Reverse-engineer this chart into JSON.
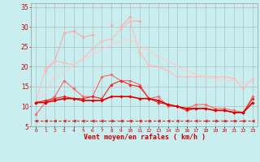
{
  "background_color": "#c8eef0",
  "grid_color": "#b0b0b0",
  "xlabel": "Vent moyen/en rafales ( km/h )",
  "x_labels": [
    "0",
    "1",
    "2",
    "3",
    "4",
    "5",
    "6",
    "7",
    "8",
    "9",
    "10",
    "11",
    "12",
    "13",
    "14",
    "15",
    "16",
    "17",
    "18",
    "19",
    "20",
    "21",
    "22",
    "23"
  ],
  "ylim": [
    5,
    36
  ],
  "xlim": [
    -0.5,
    23.5
  ],
  "yticks": [
    5,
    10,
    15,
    20,
    25,
    30,
    35
  ],
  "series": [
    {
      "label": "line_top_spiky",
      "color": "#ffaaaa",
      "linewidth": 0.8,
      "marker": "D",
      "markersize": 1.8,
      "y": [
        null,
        null,
        null,
        null,
        null,
        null,
        null,
        null,
        null,
        30.0,
        32.5,
        null,
        null,
        null,
        null,
        null,
        null,
        null,
        null,
        null,
        null,
        null,
        null,
        null
      ]
    },
    {
      "label": "line_pink_upper",
      "color": "#ffaaaa",
      "linewidth": 0.8,
      "marker": "D",
      "markersize": 1.8,
      "y": [
        null,
        19.0,
        21.5,
        28.5,
        29.0,
        27.5,
        28.0,
        null,
        30.5,
        null,
        31.5,
        31.5,
        null,
        null,
        null,
        null,
        null,
        null,
        null,
        null,
        null,
        null,
        null,
        null
      ]
    },
    {
      "label": "line_pink_mid_marker",
      "color": "#ffbbbb",
      "linewidth": 0.8,
      "marker": "D",
      "markersize": 1.8,
      "y": [
        11.0,
        19.5,
        21.5,
        21.0,
        20.5,
        22.0,
        24.5,
        26.5,
        27.0,
        29.5,
        31.5,
        23.5,
        20.5,
        20.0,
        19.0,
        17.5,
        17.5,
        17.5,
        17.5,
        17.5,
        17.5,
        17.0,
        14.5,
        17.0
      ]
    },
    {
      "label": "line_pink_smooth",
      "color": "#ffcccc",
      "linewidth": 0.8,
      "marker": null,
      "markersize": 0,
      "y": [
        11.0,
        13.5,
        17.5,
        18.5,
        20.5,
        22.0,
        23.0,
        24.5,
        25.5,
        26.5,
        27.0,
        25.5,
        24.0,
        22.5,
        21.5,
        20.0,
        19.0,
        18.0,
        17.5,
        17.0,
        16.5,
        16.5,
        16.0,
        16.5
      ]
    },
    {
      "label": "line_red_medium",
      "color": "#ff6666",
      "linewidth": 0.8,
      "marker": "D",
      "markersize": 1.8,
      "y": [
        8.0,
        11.0,
        12.5,
        16.5,
        14.5,
        12.5,
        12.5,
        17.5,
        18.0,
        16.5,
        16.5,
        15.5,
        12.0,
        12.5,
        10.0,
        10.0,
        9.5,
        10.5,
        10.5,
        9.5,
        9.5,
        9.0,
        8.5,
        12.5
      ]
    },
    {
      "label": "line_red_lower1",
      "color": "#ee2222",
      "linewidth": 0.8,
      "marker": "D",
      "markersize": 1.8,
      "y": [
        11.0,
        11.5,
        12.0,
        12.5,
        12.0,
        12.0,
        12.5,
        12.0,
        15.5,
        16.5,
        15.5,
        15.0,
        12.0,
        11.0,
        10.5,
        10.0,
        9.0,
        9.5,
        9.5,
        9.0,
        9.0,
        8.5,
        8.5,
        12.0
      ]
    },
    {
      "label": "line_red_lower2",
      "color": "#dd0000",
      "linewidth": 1.2,
      "marker": "D",
      "markersize": 1.8,
      "y": [
        11.0,
        11.0,
        11.5,
        12.0,
        12.0,
        11.5,
        11.5,
        11.5,
        12.5,
        12.5,
        12.5,
        12.0,
        12.0,
        11.5,
        10.5,
        10.0,
        9.5,
        9.5,
        9.5,
        9.0,
        9.0,
        8.5,
        8.5,
        11.0
      ]
    },
    {
      "label": "line_dashed_bottom",
      "color": "#dd2222",
      "linewidth": 0.8,
      "marker": "<",
      "markersize": 2.5,
      "dashes": true,
      "y": [
        6.5,
        6.5,
        6.5,
        6.5,
        6.5,
        6.5,
        6.5,
        6.5,
        6.5,
        6.5,
        6.5,
        6.5,
        6.5,
        6.5,
        6.5,
        6.5,
        6.5,
        6.5,
        6.5,
        6.5,
        6.5,
        6.5,
        6.5,
        6.5
      ]
    }
  ]
}
